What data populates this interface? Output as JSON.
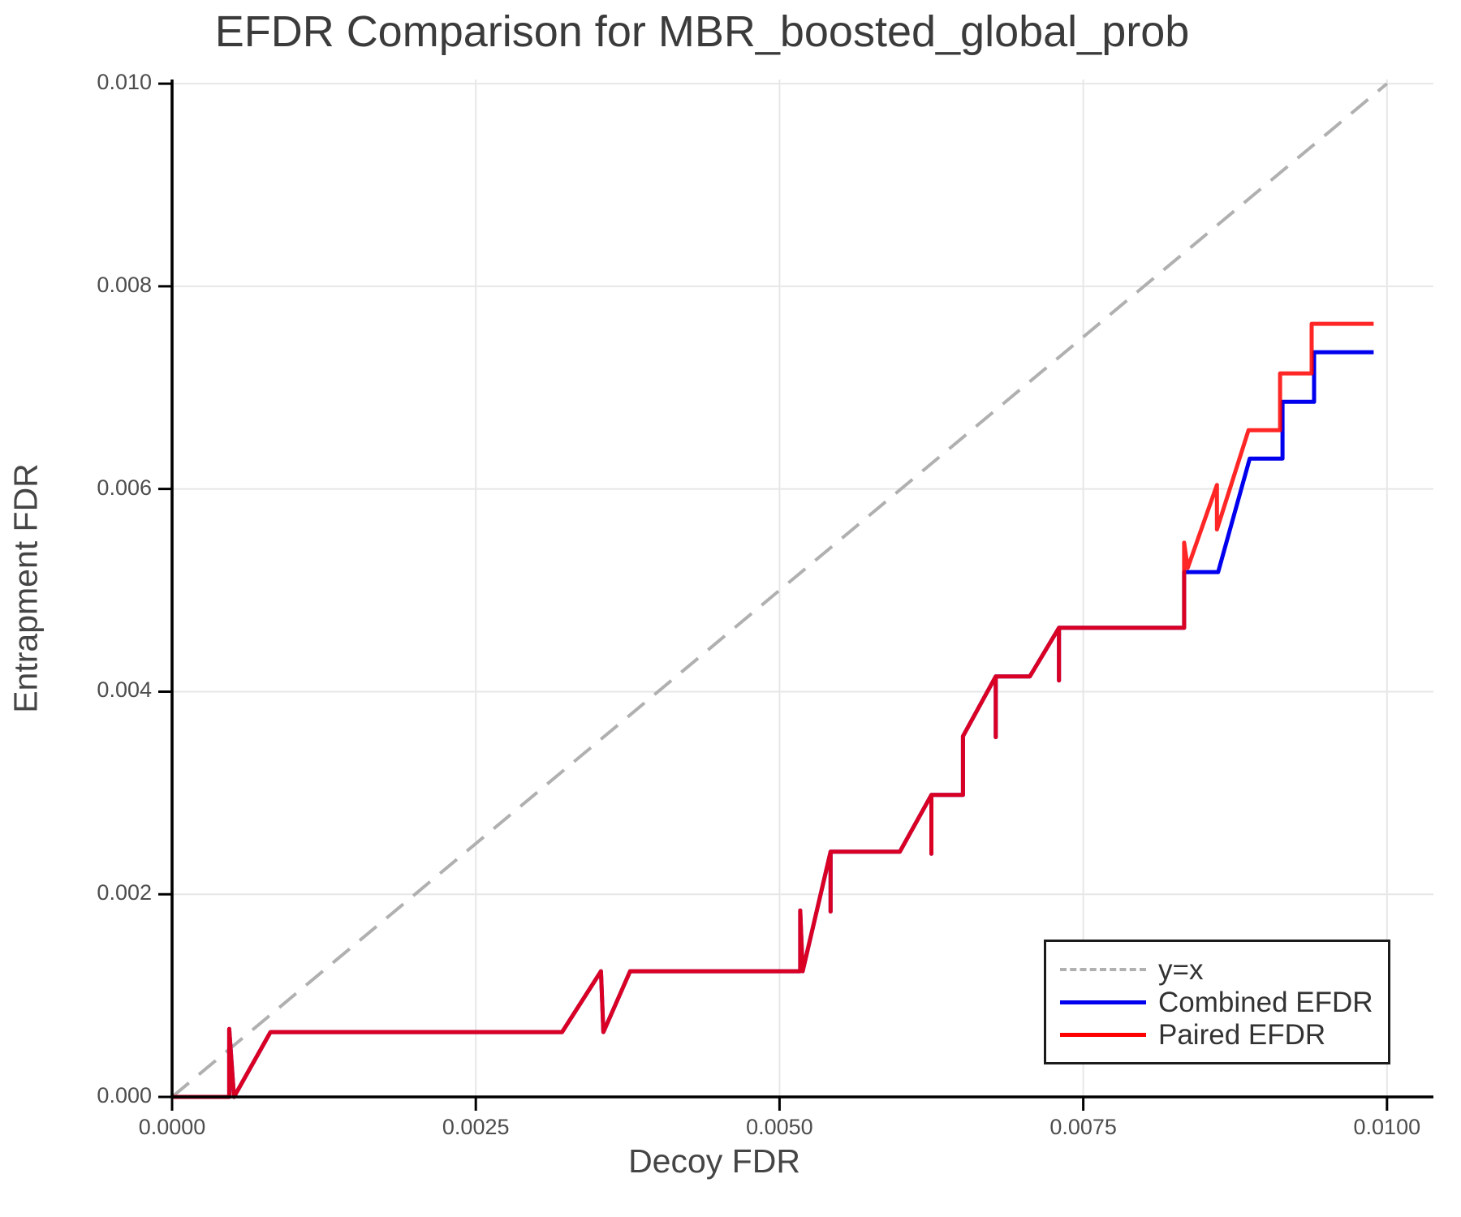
{
  "title": "EFDR Comparison for MBR_boosted_global_prob",
  "colors": {
    "paired_red": "#ff0000",
    "combined_blue": "#0000ee",
    "identity_gray": "#b0b0b0",
    "grid": "#e7e7e7",
    "spine": "#000000",
    "tick_text": "#4d4d4d",
    "label_text": "#454545",
    "title_text": "#3b3b3b",
    "legend_text": "#333333"
  },
  "legend": {
    "items": [
      {
        "label": "y=x",
        "style": "dashed",
        "color": "#b0b0b0"
      },
      {
        "label": "Combined EFDR",
        "style": "solid",
        "color": "#0000ee"
      },
      {
        "label": "Paired EFDR",
        "style": "solid",
        "color": "#ff0000"
      }
    ]
  },
  "chart_data": {
    "type": "line",
    "title": "EFDR Comparison for MBR_boosted_global_prob",
    "xlabel": "Decoy FDR",
    "ylabel": "Entrapment FDR",
    "xlim": [
      0,
      0.010382
    ],
    "ylim": [
      0,
      0.010041
    ],
    "grid": true,
    "legend_position": "lower right",
    "x_tick_values": [
      0.0,
      0.0025,
      0.005,
      0.0075,
      0.01
    ],
    "x_tick_labels": [
      "0.0000",
      "0.0025",
      "0.0050",
      "0.0075",
      "0.0100"
    ],
    "y_tick_values": [
      0.0,
      0.002,
      0.004,
      0.006,
      0.008,
      0.01
    ],
    "y_tick_labels": [
      "0.000",
      "0.002",
      "0.004",
      "0.006",
      "0.008",
      "0.010"
    ],
    "series": [
      {
        "name": "y=x",
        "type": "identity-line",
        "dashed": true,
        "color": "#b0b0b0",
        "points": [
          [
            0.0,
            0.0
          ],
          [
            0.01,
            0.01
          ]
        ]
      },
      {
        "name": "Combined EFDR",
        "dashed": false,
        "color": "#0000ee",
        "points": [
          [
            0.0,
            0.0
          ],
          [
            0.00047,
            0.0
          ],
          [
            0.00047,
            0.00067
          ],
          [
            0.00051,
            0.0
          ],
          [
            0.00081,
            0.00064
          ],
          [
            0.00321,
            0.00064
          ],
          [
            0.00353,
            0.00124
          ],
          [
            0.00355,
            0.00064
          ],
          [
            0.00377,
            0.00124
          ],
          [
            0.00517,
            0.00124
          ],
          [
            0.00517,
            0.00184
          ],
          [
            0.00519,
            0.00124
          ],
          [
            0.00542,
            0.00242
          ],
          [
            0.00542,
            0.00183
          ],
          [
            0.00542,
            0.00242
          ],
          [
            0.00599,
            0.00242
          ],
          [
            0.00625,
            0.00298
          ],
          [
            0.00625,
            0.0024
          ],
          [
            0.00625,
            0.00298
          ],
          [
            0.00651,
            0.00298
          ],
          [
            0.00651,
            0.00356
          ],
          [
            0.00678,
            0.00415
          ],
          [
            0.00678,
            0.00355
          ],
          [
            0.00678,
            0.00415
          ],
          [
            0.00706,
            0.00415
          ],
          [
            0.0073,
            0.00463
          ],
          [
            0.0073,
            0.00411
          ],
          [
            0.0073,
            0.00463
          ],
          [
            0.00833,
            0.00463
          ],
          [
            0.00833,
            0.00518
          ],
          [
            0.00861,
            0.00518
          ],
          [
            0.00887,
            0.0063
          ],
          [
            0.00914,
            0.0063
          ],
          [
            0.00914,
            0.00686
          ],
          [
            0.0094,
            0.00686
          ],
          [
            0.0094,
            0.00735
          ],
          [
            0.00989,
            0.00735
          ]
        ]
      },
      {
        "name": "Paired EFDR",
        "dashed": false,
        "color": "#ff0000",
        "points": [
          [
            0.0,
            0.0
          ],
          [
            0.00047,
            0.0
          ],
          [
            0.00047,
            0.00067
          ],
          [
            0.00051,
            0.0
          ],
          [
            0.00081,
            0.00064
          ],
          [
            0.00321,
            0.00064
          ],
          [
            0.00353,
            0.00124
          ],
          [
            0.00355,
            0.00064
          ],
          [
            0.00377,
            0.00124
          ],
          [
            0.00517,
            0.00124
          ],
          [
            0.00517,
            0.00184
          ],
          [
            0.00519,
            0.00124
          ],
          [
            0.00542,
            0.00242
          ],
          [
            0.00542,
            0.00183
          ],
          [
            0.00542,
            0.00242
          ],
          [
            0.00599,
            0.00242
          ],
          [
            0.00625,
            0.00298
          ],
          [
            0.00625,
            0.0024
          ],
          [
            0.00625,
            0.00298
          ],
          [
            0.00651,
            0.00298
          ],
          [
            0.00651,
            0.00356
          ],
          [
            0.00678,
            0.00415
          ],
          [
            0.00678,
            0.00355
          ],
          [
            0.00678,
            0.00415
          ],
          [
            0.00706,
            0.00415
          ],
          [
            0.0073,
            0.00463
          ],
          [
            0.0073,
            0.00411
          ],
          [
            0.0073,
            0.00463
          ],
          [
            0.00833,
            0.00463
          ],
          [
            0.00833,
            0.00547
          ],
          [
            0.00836,
            0.00522
          ],
          [
            0.0086,
            0.00604
          ],
          [
            0.0086,
            0.0056
          ],
          [
            0.00886,
            0.00658
          ],
          [
            0.00912,
            0.00658
          ],
          [
            0.00912,
            0.00714
          ],
          [
            0.00938,
            0.00714
          ],
          [
            0.00938,
            0.00763
          ],
          [
            0.00989,
            0.00763
          ]
        ]
      }
    ]
  }
}
